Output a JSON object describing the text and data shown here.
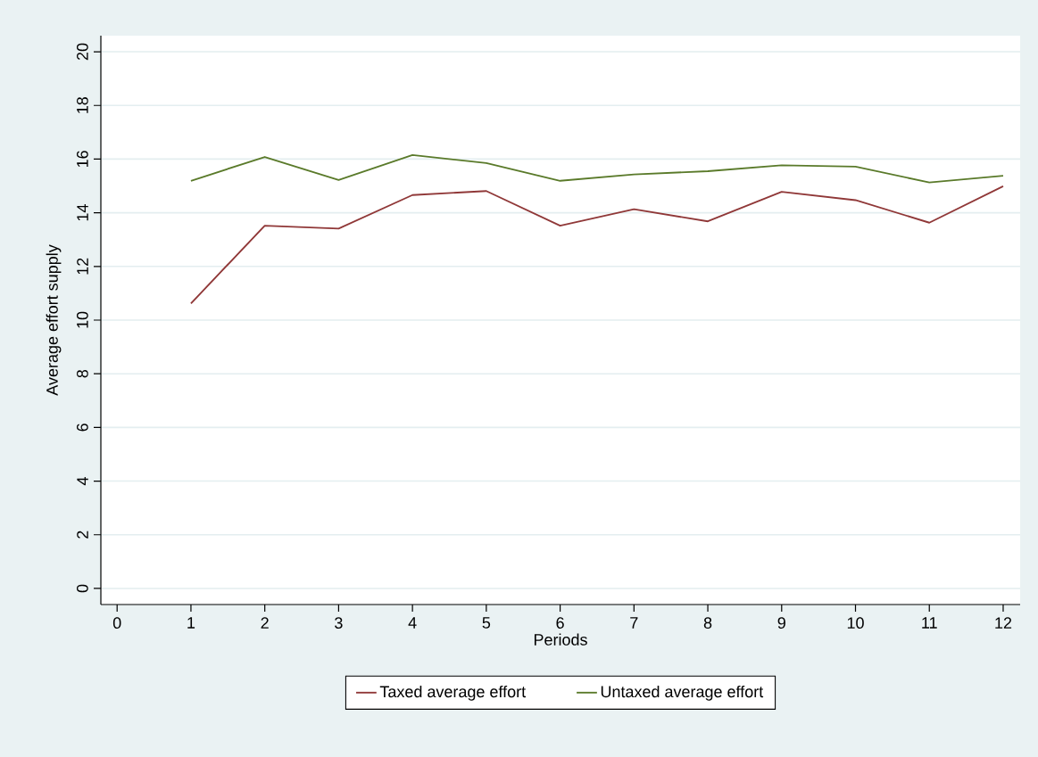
{
  "chart_data": {
    "type": "line",
    "xlabel": "Periods",
    "ylabel": "Average effort supply",
    "x": [
      1,
      2,
      3,
      4,
      5,
      6,
      7,
      8,
      9,
      10,
      11,
      12
    ],
    "series": [
      {
        "name": "Taxed average effort",
        "color": "#903838",
        "values": [
          10.62,
          13.52,
          13.41,
          14.66,
          14.81,
          13.52,
          14.13,
          13.68,
          14.78,
          14.47,
          13.63,
          14.99
        ]
      },
      {
        "name": "Untaxed average effort",
        "color": "#5a7a2a",
        "values": [
          15.19,
          16.08,
          15.22,
          16.15,
          15.85,
          15.19,
          15.43,
          15.55,
          15.77,
          15.72,
          15.13,
          15.38
        ]
      }
    ],
    "xlim": [
      -0.22,
      12.23
    ],
    "ylim": [
      -0.6,
      20.6
    ],
    "xticks": [
      0,
      1,
      2,
      3,
      4,
      5,
      6,
      7,
      8,
      9,
      10,
      11,
      12
    ],
    "yticks": [
      0,
      2,
      4,
      6,
      8,
      10,
      12,
      14,
      16,
      18,
      20
    ],
    "grid": "y",
    "legend": "bottom",
    "marker": "none",
    "line_style": "solid"
  }
}
